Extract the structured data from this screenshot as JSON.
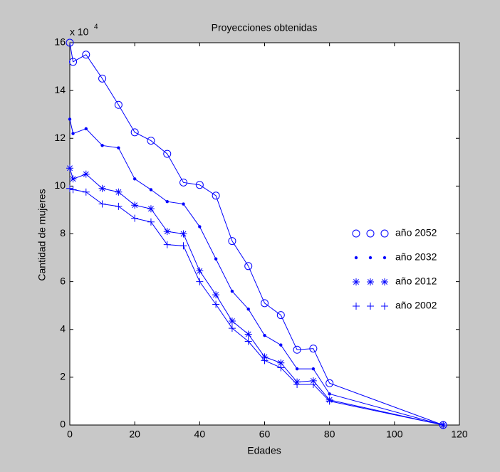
{
  "chart_data": {
    "type": "line",
    "title": "Proyecciones obtenidas",
    "x_label": "Edades",
    "y_label": "Cantidad de mujeres",
    "y_scale_base": "x 10",
    "y_scale_exponent": "4",
    "x": [
      0,
      1,
      5,
      10,
      15,
      20,
      25,
      30,
      35,
      40,
      45,
      50,
      55,
      60,
      65,
      70,
      75,
      80,
      115
    ],
    "series": [
      {
        "name": "año 2052",
        "color": "#0000ff",
        "marker": "o",
        "values": [
          16.0,
          15.2,
          15.5,
          14.5,
          13.4,
          12.25,
          11.9,
          11.35,
          10.15,
          10.05,
          9.6,
          7.7,
          6.65,
          5.1,
          4.6,
          3.15,
          3.2,
          1.75,
          0
        ]
      },
      {
        "name": "año 2032",
        "color": "#0000ff",
        "marker": ".",
        "values": [
          12.8,
          12.2,
          12.4,
          11.7,
          11.6,
          10.3,
          9.85,
          9.35,
          9.25,
          8.3,
          6.95,
          5.6,
          4.85,
          3.75,
          3.35,
          2.35,
          2.35,
          1.3,
          0
        ]
      },
      {
        "name": "año 2012",
        "color": "#0000ff",
        "marker": "*",
        "values": [
          10.75,
          10.3,
          10.5,
          9.9,
          9.75,
          9.2,
          9.05,
          8.1,
          8.0,
          6.45,
          5.45,
          4.35,
          3.8,
          2.85,
          2.6,
          1.8,
          1.85,
          1.05,
          0
        ]
      },
      {
        "name": "año 2002",
        "color": "#0000ff",
        "marker": "+",
        "values": [
          9.9,
          9.85,
          9.75,
          9.25,
          9.15,
          8.65,
          8.5,
          7.55,
          7.5,
          6.0,
          5.05,
          4.05,
          3.5,
          2.7,
          2.4,
          1.7,
          1.7,
          1.0,
          0
        ]
      }
    ],
    "xlim": [
      0,
      120
    ],
    "xticks": [
      0,
      20,
      40,
      60,
      80,
      100,
      120
    ],
    "ylim": [
      0,
      16
    ],
    "yticks": [
      0,
      2,
      4,
      6,
      8,
      10,
      12,
      14,
      16
    ],
    "grid": false,
    "legend": "right"
  }
}
